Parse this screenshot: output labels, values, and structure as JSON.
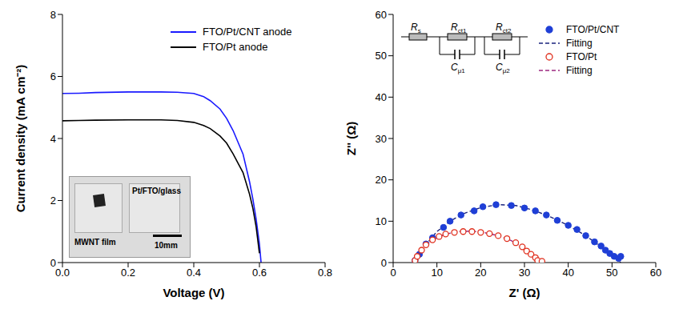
{
  "chart_data": [
    {
      "type": "line",
      "x_label": "Voltage (V)",
      "y_label": "Current density (mA cm⁻²)",
      "xlim": [
        0,
        0.8
      ],
      "xticks": [
        {
          "value": 0,
          "label": "0.0"
        },
        0.2,
        0.4,
        0.6,
        0.8
      ],
      "ylim": [
        0,
        8
      ],
      "yticks": [
        0,
        2,
        4,
        6,
        8
      ],
      "legend": "upper right",
      "series": [
        {
          "name": "FTO/Pt/CNT anode",
          "color": "#1a1aff",
          "x": [
            0,
            0.05,
            0.1,
            0.2,
            0.3,
            0.35,
            0.4,
            0.43,
            0.45,
            0.48,
            0.5,
            0.52,
            0.55,
            0.57,
            0.58,
            0.59,
            0.6,
            0.605
          ],
          "values": [
            5.45,
            5.46,
            5.48,
            5.5,
            5.5,
            5.49,
            5.45,
            5.35,
            5.22,
            4.95,
            4.65,
            4.25,
            3.5,
            2.6,
            2.05,
            1.4,
            0.6,
            0
          ]
        },
        {
          "name": "FTO/Pt anode",
          "color": "#000000",
          "x": [
            0,
            0.05,
            0.1,
            0.2,
            0.3,
            0.35,
            0.4,
            0.43,
            0.45,
            0.48,
            0.5,
            0.52,
            0.55,
            0.57,
            0.58,
            0.59,
            0.6
          ],
          "values": [
            4.57,
            4.58,
            4.59,
            4.6,
            4.6,
            4.58,
            4.52,
            4.42,
            4.32,
            4.08,
            3.85,
            3.5,
            2.9,
            2.2,
            1.75,
            1.15,
            0.3
          ]
        }
      ],
      "annotations": [
        "MWNT film",
        "Pt/FTO/glass",
        "10mm"
      ]
    },
    {
      "type": "scatter",
      "x_label": "Z' (Ω)",
      "y_label": "Z'' (Ω)",
      "xlim": [
        0,
        60
      ],
      "xticks": [
        0,
        10,
        20,
        30,
        40,
        50,
        60
      ],
      "ylim": [
        0,
        60
      ],
      "yticks": [
        0,
        10,
        20,
        30,
        40,
        50,
        60
      ],
      "legend": "upper right",
      "series": [
        {
          "name": "FTO/Pt/CNT",
          "type": "scatter",
          "marker": "filled_circle",
          "color": "#1f3fd6",
          "x": [
            5,
            6,
            7.5,
            9,
            11.5,
            13,
            15.5,
            18.5,
            20.5,
            23.5,
            27,
            30,
            32.5,
            35,
            37.5,
            40,
            42,
            44,
            46,
            47.5,
            48.5,
            49.5,
            50.5,
            51.5,
            52
          ],
          "values": [
            0.5,
            2,
            4.5,
            6,
            8.5,
            10,
            11.5,
            12.5,
            13.5,
            14,
            13.8,
            13.2,
            12.5,
            11.5,
            10.2,
            9,
            8,
            6.5,
            5,
            4,
            3,
            2.2,
            1.5,
            1,
            1.5
          ]
        },
        {
          "name": "Fitting",
          "type": "line",
          "line_style": "dashed",
          "color": "#1a237e",
          "x": [
            5,
            6,
            8,
            10,
            13,
            16,
            20,
            24,
            28,
            32,
            36,
            40,
            44,
            47,
            49.5,
            51.5,
            52
          ],
          "values": [
            0,
            2.2,
            5,
            7.5,
            10,
            11.8,
            13.3,
            14,
            13.8,
            12.7,
            11,
            9,
            6.5,
            4.2,
            2.2,
            0.5,
            0
          ]
        },
        {
          "name": "FTO/Pt",
          "type": "scatter",
          "marker": "open_circle",
          "color": "#e0301e",
          "x": [
            5,
            5.5,
            6.5,
            7.5,
            9,
            10.5,
            12,
            14,
            16,
            18,
            20,
            22,
            24,
            26,
            28,
            29.5,
            30.5,
            31.5,
            32.5,
            33,
            34
          ],
          "values": [
            0.5,
            1.5,
            3,
            4.3,
            5.5,
            6.3,
            6.9,
            7.3,
            7.5,
            7.5,
            7.3,
            7,
            6.5,
            5.8,
            4.8,
            3.8,
            2.8,
            2,
            1.2,
            0.5,
            0.3
          ]
        },
        {
          "name": "Fitting",
          "type": "line",
          "line_style": "dashed",
          "color": "#9c2780",
          "x": [
            5,
            5.5,
            7,
            9,
            12,
            15,
            18,
            21,
            24,
            27,
            30,
            32,
            33.5,
            34
          ],
          "values": [
            0,
            1.5,
            3.8,
            5.5,
            6.9,
            7.5,
            7.6,
            7.2,
            6.5,
            5.3,
            3.4,
            1.8,
            0.3,
            0
          ]
        }
      ],
      "annotations": [
        {
          "main": "R",
          "sub": "s"
        },
        {
          "main": "R",
          "sub": "ct1"
        },
        {
          "main": "R",
          "sub": "ct2"
        },
        {
          "main": "C",
          "sub": "μ1"
        },
        {
          "main": "C",
          "sub": "μ2"
        }
      ]
    }
  ]
}
